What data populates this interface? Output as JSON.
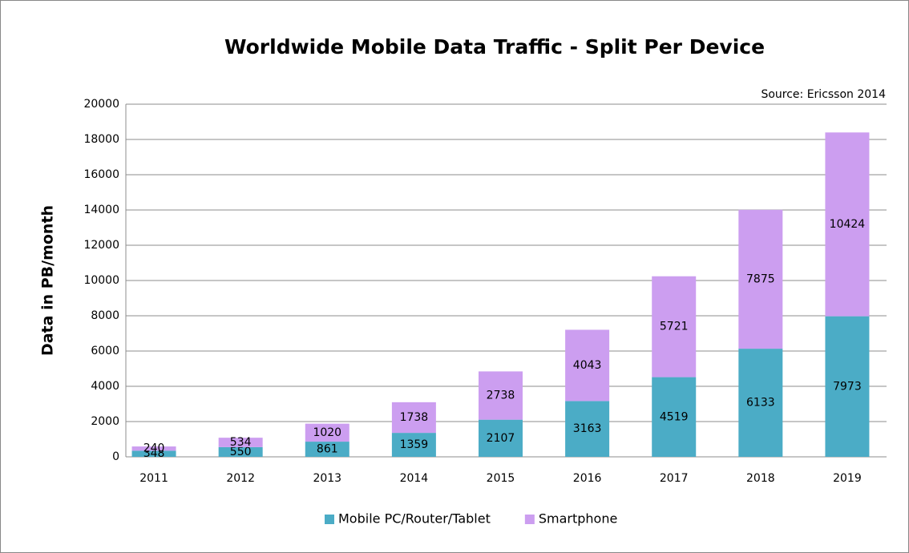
{
  "chart_data": {
    "type": "stacked_bar",
    "title": "Worldwide Mobile Data Traffic - Split Per Device",
    "annotation": "Source: Ericsson 2014",
    "y_label": "Data in PB/month",
    "categories": [
      "2011",
      "2012",
      "2013",
      "2014",
      "2015",
      "2016",
      "2017",
      "2018",
      "2019"
    ],
    "series": [
      {
        "name": "Mobile PC/Router/Tablet",
        "color": "#4bacc6",
        "values": [
          348,
          550,
          861,
          1359,
          2107,
          3163,
          4519,
          6133,
          7973
        ]
      },
      {
        "name": "Smartphone",
        "color": "#cc9ef0",
        "values": [
          240,
          534,
          1020,
          1738,
          2738,
          4043,
          5721,
          7875,
          10424
        ]
      }
    ],
    "ylim": [
      0,
      20000
    ],
    "yticks": [
      0,
      2000,
      4000,
      6000,
      8000,
      10000,
      12000,
      14000,
      16000,
      18000,
      20000
    ],
    "grid": true,
    "legend": "bottom"
  }
}
